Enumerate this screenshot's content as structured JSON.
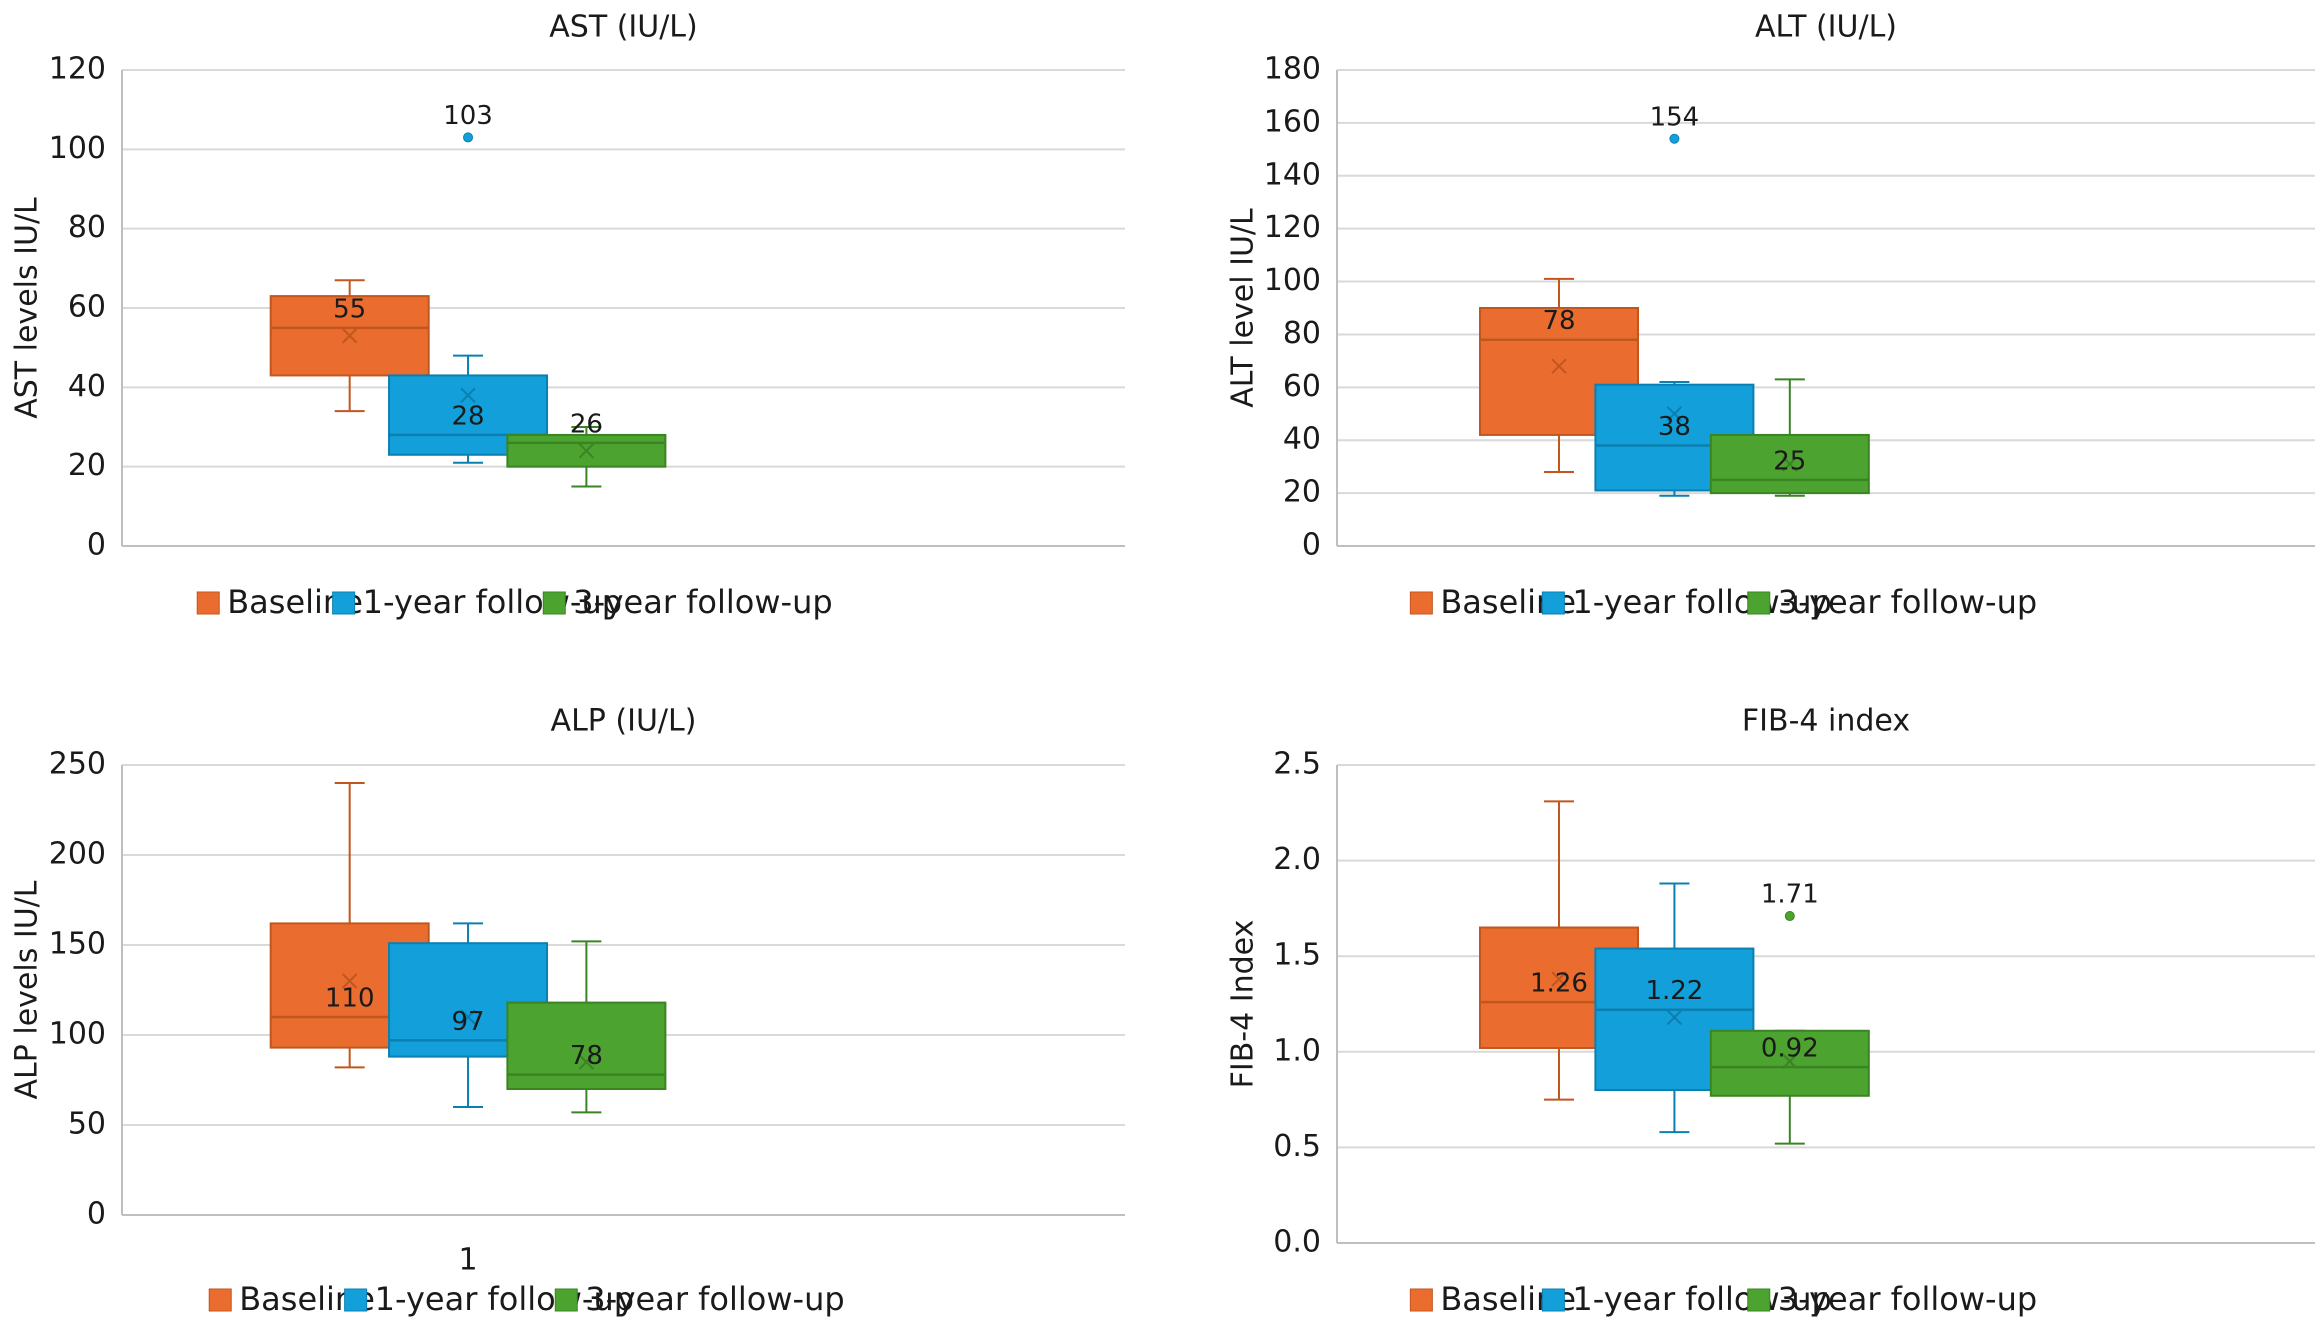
{
  "legend": {
    "items": [
      {
        "label": "Baseline",
        "color": "#EA6D2F",
        "stroke": "#C2561F"
      },
      {
        "label": "1-year follow-up",
        "color": "#13A0DA",
        "stroke": "#0B7FB0"
      },
      {
        "label": "3-year follow-up",
        "color": "#4CA330",
        "stroke": "#3A8424"
      }
    ]
  },
  "chart_data": [
    {
      "type": "box",
      "title": "AST (IU/L)",
      "ylabel": "AST levels IU/L",
      "xlabel": "",
      "ylim": [
        0,
        120
      ],
      "yticks": [
        0,
        20,
        40,
        60,
        80,
        100,
        120
      ],
      "tick_decimals": 0,
      "x_category_label": "",
      "grid": true,
      "legend_position": "bottom",
      "series": [
        {
          "name": "Baseline",
          "min": 34,
          "q1": 43,
          "median": 55,
          "q3": 63,
          "max": 67,
          "mean": 53,
          "median_label": "55",
          "outliers": []
        },
        {
          "name": "1-year follow-up",
          "min": 21,
          "q1": 23,
          "median": 28,
          "q3": 43,
          "max": 48,
          "mean": 38,
          "median_label": "28",
          "outliers": [
            {
              "value": 103,
              "label": "103"
            }
          ]
        },
        {
          "name": "3-year follow-up",
          "min": 15,
          "q1": 20,
          "median": 26,
          "q3": 28,
          "max": 30,
          "mean": 24,
          "median_label": "26",
          "outliers": []
        }
      ]
    },
    {
      "type": "box",
      "title": "ALT (IU/L)",
      "ylabel": "ALT level IU/L",
      "xlabel": "",
      "ylim": [
        0,
        180
      ],
      "yticks": [
        0,
        20,
        40,
        60,
        80,
        100,
        120,
        140,
        160,
        180
      ],
      "tick_decimals": 0,
      "x_category_label": "",
      "grid": true,
      "legend_position": "bottom",
      "series": [
        {
          "name": "Baseline",
          "min": 28,
          "q1": 42,
          "median": 78,
          "q3": 90,
          "max": 101,
          "mean": 68,
          "median_label": "78",
          "outliers": []
        },
        {
          "name": "1-year follow-up",
          "min": 19,
          "q1": 21,
          "median": 38,
          "q3": 61,
          "max": 62,
          "mean": 50,
          "median_label": "38",
          "outliers": [
            {
              "value": 154,
              "label": "154"
            }
          ]
        },
        {
          "name": "3-year follow-up",
          "min": 19,
          "q1": 20,
          "median": 25,
          "q3": 42,
          "max": 63,
          "mean": 31,
          "median_label": "25",
          "outliers": []
        }
      ]
    },
    {
      "type": "box",
      "title": "ALP (IU/L)",
      "ylabel": "ALP levels IU/L",
      "xlabel": "",
      "ylim": [
        0,
        250
      ],
      "yticks": [
        0,
        50,
        100,
        150,
        200,
        250
      ],
      "tick_decimals": 0,
      "x_category_label": "1",
      "grid": true,
      "legend_position": "bottom",
      "series": [
        {
          "name": "Baseline",
          "min": 82,
          "q1": 93,
          "median": 110,
          "q3": 162,
          "max": 240,
          "mean": 130,
          "median_label": "110",
          "outliers": []
        },
        {
          "name": "1-year follow-up",
          "min": 60,
          "q1": 88,
          "median": 97,
          "q3": 151,
          "max": 162,
          "mean": 110,
          "median_label": "97",
          "outliers": []
        },
        {
          "name": "3-year follow-up",
          "min": 57,
          "q1": 70,
          "median": 78,
          "q3": 118,
          "max": 152,
          "mean": 85,
          "median_label": "78",
          "outliers": []
        }
      ]
    },
    {
      "type": "box",
      "title": "FIB-4 index",
      "ylabel": "FIB-4 Index",
      "xlabel": "",
      "ylim": [
        0,
        2.5
      ],
      "yticks": [
        0.0,
        0.5,
        1.0,
        1.5,
        2.0,
        2.5
      ],
      "tick_decimals": 1,
      "x_category_label": "",
      "grid": true,
      "legend_position": "bottom",
      "series": [
        {
          "name": "Baseline",
          "min": 0.75,
          "q1": 1.02,
          "median": 1.26,
          "q3": 1.65,
          "max": 2.31,
          "mean": 1.38,
          "median_label": "1.26",
          "outliers": []
        },
        {
          "name": "1-year follow-up",
          "min": 0.58,
          "q1": 0.8,
          "median": 1.22,
          "q3": 1.54,
          "max": 1.88,
          "mean": 1.18,
          "median_label": "1.22",
          "outliers": []
        },
        {
          "name": "3-year follow-up",
          "min": 0.52,
          "q1": 0.77,
          "median": 0.92,
          "q3": 1.11,
          "max": 1.11,
          "mean": 0.95,
          "median_label": "0.92",
          "outliers": [
            {
              "value": 1.71,
              "label": "1.71"
            }
          ]
        }
      ]
    }
  ]
}
